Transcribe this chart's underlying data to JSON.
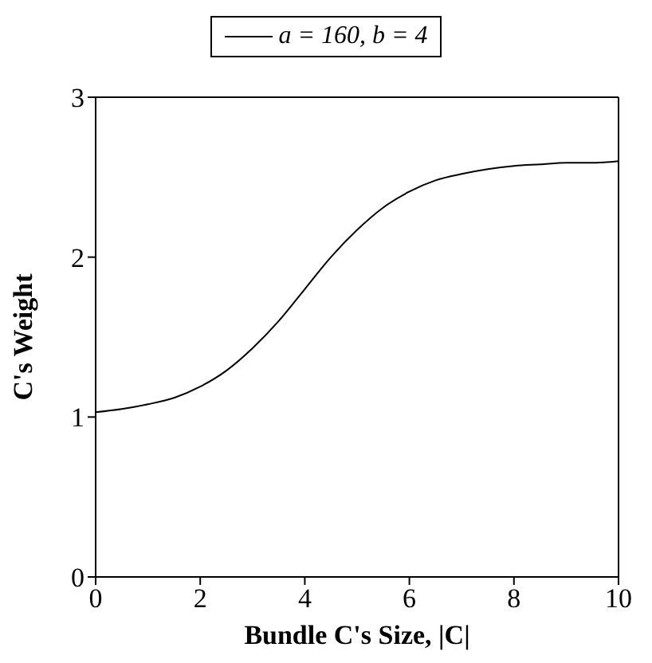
{
  "chart_data": {
    "type": "line",
    "xlabel": "Bundle C's Size, |C|",
    "ylabel": "C's Weight",
    "x": [
      0,
      0.5,
      1,
      1.5,
      2,
      2.5,
      3,
      3.5,
      4,
      4.5,
      5,
      5.5,
      6,
      6.5,
      7,
      7.5,
      8,
      8.5,
      9,
      9.5,
      10
    ],
    "series": [
      {
        "name": "a = 160, b = 4",
        "color": "#000000",
        "values": [
          1.03,
          1.05,
          1.08,
          1.12,
          1.19,
          1.29,
          1.43,
          1.6,
          1.8,
          2.0,
          2.17,
          2.31,
          2.41,
          2.48,
          2.52,
          2.55,
          2.57,
          2.58,
          2.59,
          2.59,
          2.6
        ]
      }
    ],
    "xlim": [
      0,
      10
    ],
    "xticks": [
      0,
      2,
      4,
      6,
      8,
      10
    ],
    "ylim": [
      0,
      3
    ],
    "yticks": [
      0,
      1,
      2,
      3
    ],
    "grid": false,
    "legend": "top",
    "marker": "none",
    "line_style": "solid"
  }
}
